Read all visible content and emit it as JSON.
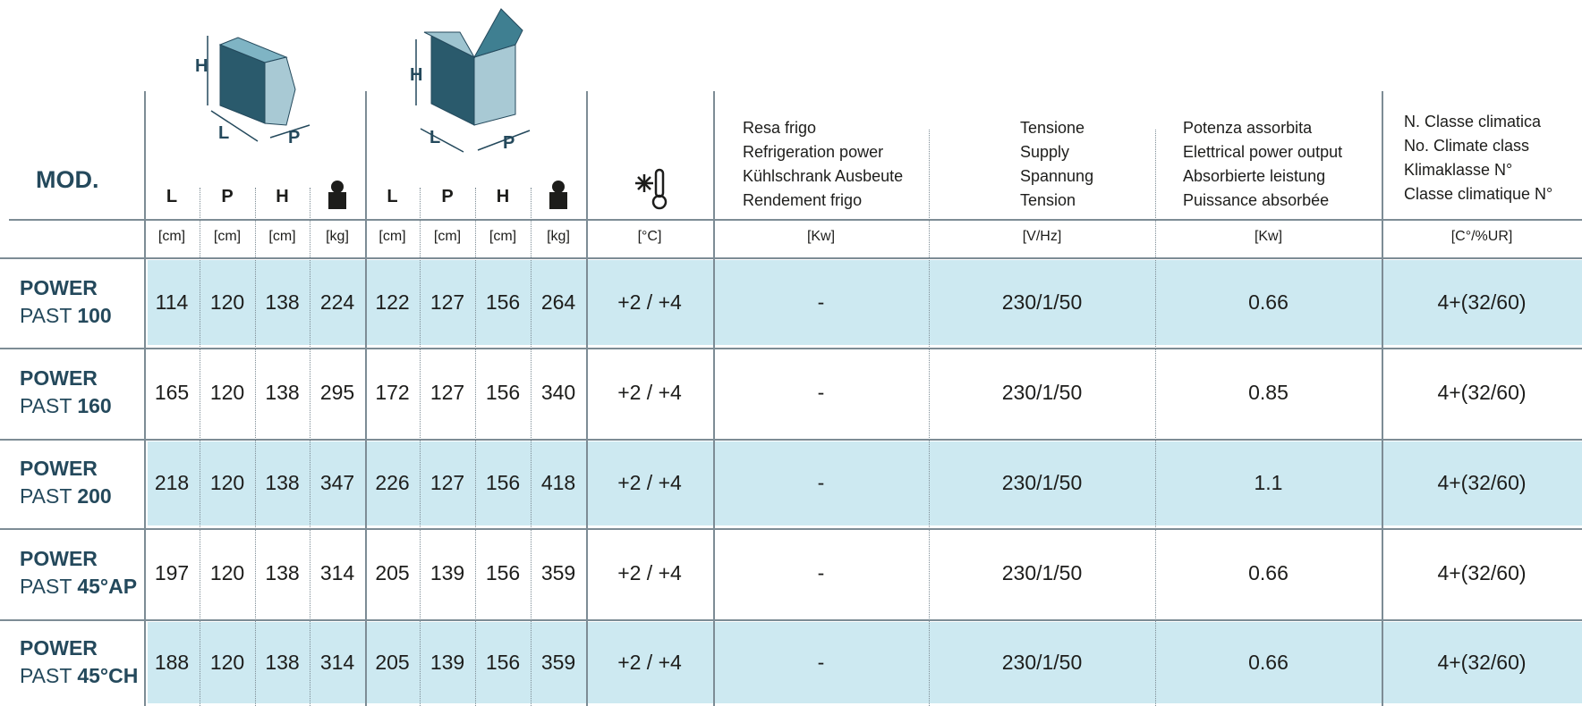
{
  "header": {
    "model": "MOD.",
    "dimensions_1": [
      "L",
      "P",
      "H"
    ],
    "dimensions_2": [
      "L",
      "P",
      "H"
    ],
    "columns": [
      [
        "Resa frigo",
        "Refrigeration power",
        "Kühlschrank Ausbeute",
        "Rendement frigo"
      ],
      [
        "Tensione",
        "Supply",
        "Spannung",
        "Tension"
      ],
      [
        "Potenza assorbita",
        "Elettrical power output",
        "Absorbierte leistung",
        "Puissance absorbée"
      ],
      [
        "N. Classe climatica",
        "No. Climate class",
        "Klimaklasse N°",
        "Classe climatique N°"
      ]
    ]
  },
  "units": [
    "[cm]",
    "[cm]",
    "[cm]",
    "[kg]",
    "[cm]",
    "[cm]",
    "[cm]",
    "[kg]",
    "[°C]",
    "[Kw]",
    "[V/Hz]",
    "[Kw]",
    "[C°/%UR]"
  ],
  "rows": [
    {
      "brand": "POWER",
      "line": "PAST",
      "size": "100",
      "cells": [
        "114",
        "120",
        "138",
        "224",
        "122",
        "127",
        "156",
        "264",
        "+2 / +4",
        "-",
        "230/1/50",
        "0.66",
        "4+(32/60)"
      ]
    },
    {
      "brand": "POWER",
      "line": "PAST",
      "size": "160",
      "cells": [
        "165",
        "120",
        "138",
        "295",
        "172",
        "127",
        "156",
        "340",
        "+2 / +4",
        "-",
        "230/1/50",
        "0.85",
        "4+(32/60)"
      ]
    },
    {
      "brand": "POWER",
      "line": "PAST",
      "size": "200",
      "cells": [
        "218",
        "120",
        "138",
        "347",
        "226",
        "127",
        "156",
        "418",
        "+2 / +4",
        "-",
        "230/1/50",
        "1.1",
        "4+(32/60)"
      ]
    },
    {
      "brand": "POWER",
      "line": "PAST",
      "size": "45°AP",
      "cells": [
        "197",
        "120",
        "138",
        "314",
        "205",
        "139",
        "156",
        "359",
        "+2 / +4",
        "-",
        "230/1/50",
        "0.66",
        "4+(32/60)"
      ]
    },
    {
      "brand": "POWER",
      "line": "PAST",
      "size": "45°CH",
      "cells": [
        "188",
        "120",
        "138",
        "314",
        "205",
        "139",
        "156",
        "359",
        "+2 / +4",
        "-",
        "230/1/50",
        "0.66",
        "4+(32/60)"
      ]
    }
  ]
}
